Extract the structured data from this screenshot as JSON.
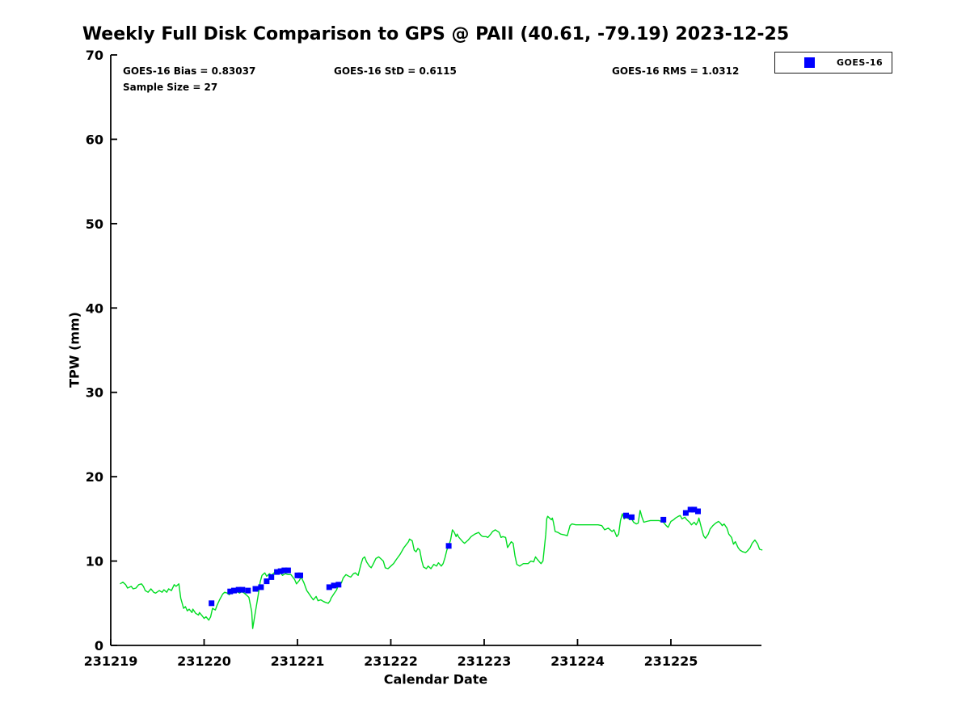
{
  "title": "Weekly Full Disk Comparison to GPS @ PAII (40.61, -79.19) 2023-12-25",
  "stats": {
    "bias": "GOES-16 Bias = 0.83037",
    "std": "GOES-16 StD = 0.6115",
    "rms": "GOES-16 RMS = 1.0312",
    "sample_size": "Sample Size = 27"
  },
  "legend": {
    "entries": [
      {
        "label": "GOES-16",
        "marker": "square",
        "color": "#0000ff"
      }
    ]
  },
  "chart_data": {
    "type": "line",
    "title": "Weekly Full Disk Comparison to GPS @ PAII (40.61, -79.19) 2023-12-25",
    "xlabel": "Calendar Date",
    "ylabel": "TPW (mm)",
    "grid": false,
    "legend_position": "top-right-outside",
    "x_axis": {
      "unit": "days since 231219",
      "min": 0,
      "max": 6.97,
      "ticks": [
        {
          "pos": 0,
          "label": "231219"
        },
        {
          "pos": 1,
          "label": "231220"
        },
        {
          "pos": 2,
          "label": "231221"
        },
        {
          "pos": 3,
          "label": "231222"
        },
        {
          "pos": 4,
          "label": "231223"
        },
        {
          "pos": 5,
          "label": "231224"
        },
        {
          "pos": 6,
          "label": "231225"
        }
      ]
    },
    "y_axis": {
      "min": 0,
      "max": 70,
      "ticks": [
        0,
        10,
        20,
        30,
        40,
        50,
        60,
        70
      ]
    },
    "series": [
      {
        "name": "GPS",
        "style": "line",
        "color": "#00dd22",
        "points": [
          [
            0.1,
            7.3
          ],
          [
            0.13,
            7.5
          ],
          [
            0.16,
            7.2
          ],
          [
            0.18,
            6.8
          ],
          [
            0.22,
            7.0
          ],
          [
            0.24,
            6.7
          ],
          [
            0.27,
            6.8
          ],
          [
            0.3,
            7.2
          ],
          [
            0.33,
            7.3
          ],
          [
            0.35,
            7.0
          ],
          [
            0.37,
            6.5
          ],
          [
            0.4,
            6.3
          ],
          [
            0.43,
            6.7
          ],
          [
            0.46,
            6.3
          ],
          [
            0.48,
            6.2
          ],
          [
            0.52,
            6.5
          ],
          [
            0.55,
            6.3
          ],
          [
            0.57,
            6.6
          ],
          [
            0.6,
            6.3
          ],
          [
            0.62,
            6.7
          ],
          [
            0.65,
            6.5
          ],
          [
            0.68,
            7.2
          ],
          [
            0.7,
            7.0
          ],
          [
            0.73,
            7.3
          ],
          [
            0.75,
            5.6
          ],
          [
            0.78,
            4.4
          ],
          [
            0.8,
            4.6
          ],
          [
            0.82,
            4.1
          ],
          [
            0.84,
            4.3
          ],
          [
            0.87,
            3.9
          ],
          [
            0.88,
            4.3
          ],
          [
            0.91,
            3.8
          ],
          [
            0.94,
            3.6
          ],
          [
            0.95,
            3.9
          ],
          [
            0.98,
            3.5
          ],
          [
            1.0,
            3.2
          ],
          [
            1.02,
            3.4
          ],
          [
            1.05,
            3.0
          ],
          [
            1.07,
            3.4
          ],
          [
            1.09,
            4.4
          ],
          [
            1.12,
            4.2
          ],
          [
            1.14,
            4.8
          ],
          [
            1.17,
            5.5
          ],
          [
            1.2,
            6.1
          ],
          [
            1.22,
            6.3
          ],
          [
            1.25,
            6.2
          ],
          [
            1.27,
            6.0
          ],
          [
            1.3,
            6.5
          ],
          [
            1.32,
            6.3
          ],
          [
            1.35,
            6.4
          ],
          [
            1.38,
            6.2
          ],
          [
            1.4,
            6.4
          ],
          [
            1.43,
            6.2
          ],
          [
            1.45,
            6.0
          ],
          [
            1.48,
            5.7
          ],
          [
            1.51,
            4.0
          ],
          [
            1.52,
            2.0
          ],
          [
            1.55,
            4.0
          ],
          [
            1.58,
            6.0
          ],
          [
            1.6,
            7.5
          ],
          [
            1.62,
            8.3
          ],
          [
            1.65,
            8.6
          ],
          [
            1.67,
            8.2
          ],
          [
            1.7,
            8.5
          ],
          [
            1.72,
            8.3
          ],
          [
            1.75,
            8.6
          ],
          [
            1.78,
            8.9
          ],
          [
            1.81,
            8.7
          ],
          [
            1.84,
            8.3
          ],
          [
            1.87,
            8.5
          ],
          [
            1.9,
            8.4
          ],
          [
            1.93,
            8.4
          ],
          [
            1.97,
            7.8
          ],
          [
            1.99,
            7.3
          ],
          [
            2.02,
            7.7
          ],
          [
            2.04,
            8.1
          ],
          [
            2.07,
            7.4
          ],
          [
            2.1,
            6.5
          ],
          [
            2.12,
            6.2
          ],
          [
            2.15,
            5.7
          ],
          [
            2.17,
            5.4
          ],
          [
            2.2,
            5.8
          ],
          [
            2.22,
            5.3
          ],
          [
            2.25,
            5.4
          ],
          [
            2.28,
            5.2
          ],
          [
            2.3,
            5.1
          ],
          [
            2.33,
            5.0
          ],
          [
            2.35,
            5.3
          ],
          [
            2.36,
            5.6
          ],
          [
            2.39,
            6.1
          ],
          [
            2.42,
            6.6
          ],
          [
            2.44,
            7.2
          ],
          [
            2.47,
            7.4
          ],
          [
            2.49,
            8.0
          ],
          [
            2.52,
            8.4
          ],
          [
            2.55,
            8.2
          ],
          [
            2.57,
            8.1
          ],
          [
            2.6,
            8.5
          ],
          [
            2.62,
            8.6
          ],
          [
            2.65,
            8.3
          ],
          [
            2.68,
            9.6
          ],
          [
            2.7,
            10.3
          ],
          [
            2.72,
            10.5
          ],
          [
            2.74,
            9.9
          ],
          [
            2.77,
            9.4
          ],
          [
            2.79,
            9.2
          ],
          [
            2.81,
            9.6
          ],
          [
            2.84,
            10.3
          ],
          [
            2.87,
            10.5
          ],
          [
            2.89,
            10.3
          ],
          [
            2.92,
            10.0
          ],
          [
            2.94,
            9.2
          ],
          [
            2.97,
            9.1
          ],
          [
            3.0,
            9.4
          ],
          [
            3.03,
            9.7
          ],
          [
            3.06,
            10.2
          ],
          [
            3.1,
            10.8
          ],
          [
            3.14,
            11.6
          ],
          [
            3.19,
            12.3
          ],
          [
            3.2,
            12.6
          ],
          [
            3.23,
            12.4
          ],
          [
            3.25,
            11.3
          ],
          [
            3.27,
            11.1
          ],
          [
            3.29,
            11.5
          ],
          [
            3.31,
            11.3
          ],
          [
            3.33,
            10.1
          ],
          [
            3.35,
            9.3
          ],
          [
            3.38,
            9.1
          ],
          [
            3.4,
            9.4
          ],
          [
            3.43,
            9.1
          ],
          [
            3.46,
            9.6
          ],
          [
            3.49,
            9.4
          ],
          [
            3.51,
            9.8
          ],
          [
            3.54,
            9.4
          ],
          [
            3.56,
            9.7
          ],
          [
            3.58,
            10.4
          ],
          [
            3.6,
            11.3
          ],
          [
            3.62,
            11.8
          ],
          [
            3.64,
            12.5
          ],
          [
            3.66,
            13.7
          ],
          [
            3.68,
            13.4
          ],
          [
            3.7,
            12.9
          ],
          [
            3.71,
            13.2
          ],
          [
            3.73,
            12.8
          ],
          [
            3.77,
            12.3
          ],
          [
            3.79,
            12.1
          ],
          [
            3.83,
            12.5
          ],
          [
            3.86,
            12.9
          ],
          [
            3.9,
            13.2
          ],
          [
            3.94,
            13.4
          ],
          [
            3.97,
            13.0
          ],
          [
            3.99,
            12.9
          ],
          [
            4.02,
            12.9
          ],
          [
            4.04,
            12.8
          ],
          [
            4.07,
            13.2
          ],
          [
            4.09,
            13.5
          ],
          [
            4.12,
            13.7
          ],
          [
            4.16,
            13.4
          ],
          [
            4.18,
            12.8
          ],
          [
            4.2,
            12.9
          ],
          [
            4.23,
            12.8
          ],
          [
            4.25,
            11.6
          ],
          [
            4.29,
            12.3
          ],
          [
            4.31,
            12.1
          ],
          [
            4.33,
            10.6
          ],
          [
            4.35,
            9.6
          ],
          [
            4.38,
            9.4
          ],
          [
            4.42,
            9.7
          ],
          [
            4.47,
            9.7
          ],
          [
            4.5,
            10.0
          ],
          [
            4.53,
            9.9
          ],
          [
            4.55,
            10.5
          ],
          [
            4.57,
            10.2
          ],
          [
            4.6,
            9.8
          ],
          [
            4.61,
            9.7
          ],
          [
            4.63,
            10.0
          ],
          [
            4.66,
            13.2
          ],
          [
            4.67,
            15.0
          ],
          [
            4.68,
            15.3
          ],
          [
            4.7,
            15.1
          ],
          [
            4.72,
            14.9
          ],
          [
            4.73,
            15.1
          ],
          [
            4.74,
            14.7
          ],
          [
            4.76,
            13.5
          ],
          [
            4.79,
            13.4
          ],
          [
            4.82,
            13.2
          ],
          [
            4.86,
            13.1
          ],
          [
            4.89,
            13.0
          ],
          [
            4.92,
            14.2
          ],
          [
            4.94,
            14.4
          ],
          [
            4.98,
            14.3
          ],
          [
            5.05,
            14.3
          ],
          [
            5.13,
            14.3
          ],
          [
            5.22,
            14.3
          ],
          [
            5.26,
            14.2
          ],
          [
            5.29,
            13.7
          ],
          [
            5.33,
            13.9
          ],
          [
            5.37,
            13.5
          ],
          [
            5.39,
            13.7
          ],
          [
            5.42,
            12.9
          ],
          [
            5.44,
            13.2
          ],
          [
            5.46,
            14.8
          ],
          [
            5.48,
            15.6
          ],
          [
            5.5,
            15.0
          ],
          [
            5.52,
            15.2
          ],
          [
            5.55,
            15.0
          ],
          [
            5.58,
            15.0
          ],
          [
            5.6,
            14.6
          ],
          [
            5.63,
            14.4
          ],
          [
            5.65,
            14.5
          ],
          [
            5.67,
            16.0
          ],
          [
            5.69,
            15.2
          ],
          [
            5.71,
            14.6
          ],
          [
            5.74,
            14.7
          ],
          [
            5.78,
            14.8
          ],
          [
            5.83,
            14.8
          ],
          [
            5.87,
            14.8
          ],
          [
            5.9,
            14.7
          ],
          [
            5.92,
            14.6
          ],
          [
            5.95,
            14.2
          ],
          [
            5.97,
            14.0
          ],
          [
            6.0,
            14.7
          ],
          [
            6.03,
            14.9
          ],
          [
            6.05,
            15.1
          ],
          [
            6.08,
            15.3
          ],
          [
            6.1,
            15.4
          ],
          [
            6.12,
            15.0
          ],
          [
            6.15,
            15.2
          ],
          [
            6.17,
            14.9
          ],
          [
            6.2,
            14.6
          ],
          [
            6.22,
            14.3
          ],
          [
            6.25,
            14.6
          ],
          [
            6.27,
            14.3
          ],
          [
            6.29,
            14.7
          ],
          [
            6.3,
            15.1
          ],
          [
            6.33,
            13.8
          ],
          [
            6.35,
            13.0
          ],
          [
            6.37,
            12.7
          ],
          [
            6.4,
            13.2
          ],
          [
            6.42,
            13.8
          ],
          [
            6.45,
            14.2
          ],
          [
            6.48,
            14.5
          ],
          [
            6.51,
            14.7
          ],
          [
            6.53,
            14.5
          ],
          [
            6.55,
            14.2
          ],
          [
            6.57,
            14.4
          ],
          [
            6.6,
            13.9
          ],
          [
            6.62,
            13.2
          ],
          [
            6.65,
            12.8
          ],
          [
            6.67,
            12.0
          ],
          [
            6.69,
            12.3
          ],
          [
            6.72,
            11.6
          ],
          [
            6.74,
            11.3
          ],
          [
            6.77,
            11.1
          ],
          [
            6.8,
            11.0
          ],
          [
            6.82,
            11.2
          ],
          [
            6.85,
            11.6
          ],
          [
            6.87,
            12.1
          ],
          [
            6.9,
            12.5
          ],
          [
            6.93,
            12.0
          ],
          [
            6.95,
            11.4
          ],
          [
            6.98,
            11.3
          ]
        ]
      },
      {
        "name": "GOES-16",
        "style": "scatter-square",
        "color": "#0000ff",
        "marker_size": 7,
        "points": [
          [
            1.08,
            5.0
          ],
          [
            1.28,
            6.4
          ],
          [
            1.32,
            6.5
          ],
          [
            1.37,
            6.6
          ],
          [
            1.41,
            6.6
          ],
          [
            1.47,
            6.5
          ],
          [
            1.55,
            6.7
          ],
          [
            1.61,
            6.9
          ],
          [
            1.67,
            7.6
          ],
          [
            1.72,
            8.1
          ],
          [
            1.78,
            8.7
          ],
          [
            1.82,
            8.8
          ],
          [
            1.86,
            8.9
          ],
          [
            1.9,
            8.9
          ],
          [
            2.0,
            8.3
          ],
          [
            2.03,
            8.3
          ],
          [
            2.34,
            6.9
          ],
          [
            2.39,
            7.1
          ],
          [
            2.44,
            7.2
          ],
          [
            3.62,
            11.8
          ],
          [
            5.52,
            15.4
          ],
          [
            5.58,
            15.2
          ],
          [
            5.92,
            14.9
          ],
          [
            6.16,
            15.7
          ],
          [
            6.21,
            16.1
          ],
          [
            6.25,
            16.1
          ],
          [
            6.29,
            15.9
          ]
        ]
      }
    ]
  }
}
